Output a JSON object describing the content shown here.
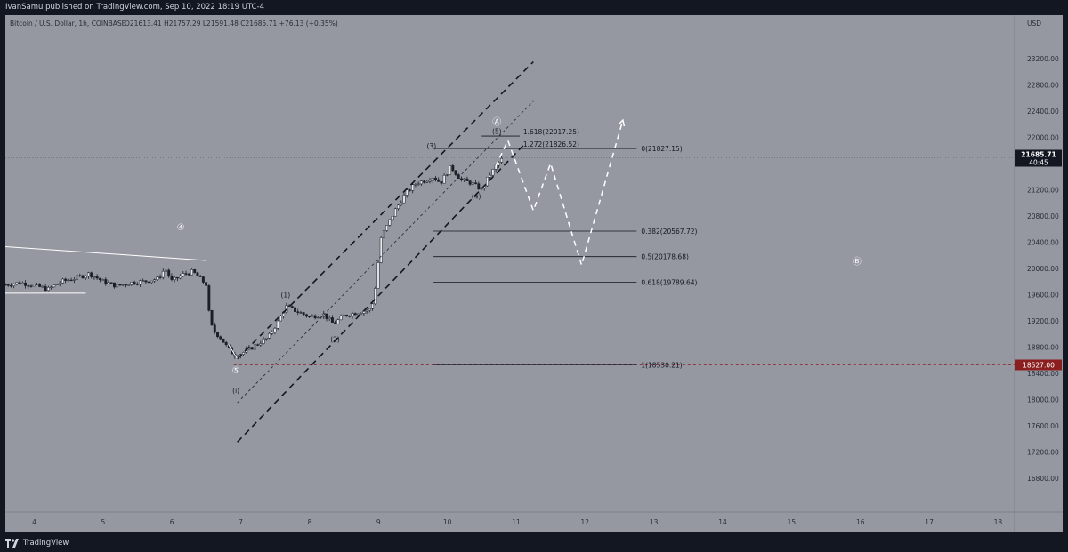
{
  "header": {
    "published_by": "IvanSamu published on TradingView.com, Sep 10, 2022 18:19 UTC-4"
  },
  "footer": {
    "brand": "TradingView"
  },
  "colors": {
    "background": "#9598a1",
    "frame": "#131722",
    "candle": "#1b1e26",
    "price_label_bg": "#131722",
    "low_label_bg": "#8b1f1f",
    "low_line": "#8b1f1f"
  },
  "chart_data": {
    "type": "candlestick",
    "instrument": "Bitcoin / U.S. Dollar, 1h, COINBASE",
    "ohlc_text": "O21613.41  H21757.29  L21591.48  C21685.71  +76.13 (+0.35%)",
    "currency": "USD",
    "ylim": [
      16500,
      23550
    ],
    "xlim": [
      3.58,
      18.24
    ],
    "y_ticks": [
      "23200.00",
      "22800.00",
      "22400.00",
      "22000.00",
      "21600.00",
      "21200.00",
      "20800.00",
      "20400.00",
      "20000.00",
      "19600.00",
      "19200.00",
      "18800.00",
      "18400.00",
      "18000.00",
      "17600.00",
      "17200.00",
      "16800.00"
    ],
    "x_ticks": [
      "4",
      "5",
      "6",
      "7",
      "8",
      "9",
      "10",
      "11",
      "12",
      "13",
      "14",
      "15",
      "16",
      "17",
      "18"
    ],
    "x_tick_values": [
      4,
      5,
      6,
      7,
      8,
      9,
      10,
      11,
      12,
      13,
      14,
      15,
      16,
      17,
      18
    ],
    "current_price": {
      "value": 21685.71,
      "label": "21685.71",
      "countdown": "40:45"
    },
    "low_marker": {
      "value": 18527,
      "label": "18527.00"
    },
    "fibonacci": [
      {
        "level": 0,
        "label": "0(21827.15)",
        "price": 21827.15,
        "x_start": 9.8,
        "x_end": 12.75
      },
      {
        "level": 0.382,
        "label": "0.382(20567.72)",
        "price": 20567.72,
        "x_start": 9.8,
        "x_end": 12.75
      },
      {
        "level": 0.5,
        "label": "0.5(20178.68)",
        "price": 20178.68,
        "x_start": 9.8,
        "x_end": 12.75
      },
      {
        "level": 0.618,
        "label": "0.618(19789.64)",
        "price": 19789.64,
        "x_start": 9.8,
        "x_end": 12.75
      },
      {
        "level": 1,
        "label": "1(18530.21)",
        "price": 18530.21,
        "x_start": 9.8,
        "x_end": 12.75
      }
    ],
    "extensions": [
      {
        "label": "1.618(22017.25)",
        "price": 22017.25,
        "x_start": 10.5,
        "x_end": 11.05
      },
      {
        "label": "1.272(21826.52)",
        "price": 21826.52,
        "x_start": 10.5,
        "x_end": 11.05
      }
    ],
    "wave_labels": [
      {
        "text": "④",
        "x": 6.13,
        "y": 20580
      },
      {
        "text": "⑤",
        "x": 6.93,
        "y": 18400
      },
      {
        "text": "(i)",
        "x": 6.93,
        "y": 18100
      },
      {
        "text": "(1)",
        "x": 7.65,
        "y": 19560
      },
      {
        "text": "(2)",
        "x": 8.37,
        "y": 18880
      },
      {
        "text": "(3)",
        "x": 9.77,
        "y": 21830
      },
      {
        "text": "(4)",
        "x": 10.42,
        "y": 21060
      },
      {
        "text": "(5)",
        "x": 10.72,
        "y": 22050
      },
      {
        "text": "Ⓐ",
        "x": 10.72,
        "y": 22190
      },
      {
        "text": "Ⓑ",
        "x": 15.95,
        "y": 20060
      }
    ],
    "projection_path": [
      {
        "x": 10.7,
        "y": 21550
      },
      {
        "x": 10.88,
        "y": 21950
      },
      {
        "x": 11.25,
        "y": 20880
      },
      {
        "x": 11.5,
        "y": 21600
      },
      {
        "x": 11.95,
        "y": 20050
      },
      {
        "x": 12.55,
        "y": 22260
      }
    ],
    "channel_outer_upper": [
      {
        "x": 6.95,
        "y": 18620
      },
      {
        "x": 11.25,
        "y": 23150
      }
    ],
    "channel_outer_lower": [
      {
        "x": 6.95,
        "y": 17350
      },
      {
        "x": 11.1,
        "y": 21870
      }
    ],
    "channel_inner": [
      {
        "x": 6.95,
        "y": 17950
      },
      {
        "x": 11.25,
        "y": 22550
      }
    ],
    "triangle_upper": [
      {
        "x": 3.58,
        "y": 20330
      },
      {
        "x": 6.5,
        "y": 20120
      }
    ],
    "triangle_lower": [
      {
        "x": 3.58,
        "y": 19620
      },
      {
        "x": 4.75,
        "y": 19620
      }
    ],
    "small_arrow": [
      {
        "x": 6.82,
        "y": 18840
      },
      {
        "x": 6.95,
        "y": 18620
      }
    ],
    "price_path": [
      {
        "x": 3.58,
        "y": 19750
      },
      {
        "x": 3.8,
        "y": 19780
      },
      {
        "x": 4.0,
        "y": 19740
      },
      {
        "x": 4.2,
        "y": 19680
      },
      {
        "x": 4.4,
        "y": 19800
      },
      {
        "x": 4.6,
        "y": 19850
      },
      {
        "x": 4.8,
        "y": 19920
      },
      {
        "x": 5.0,
        "y": 19800
      },
      {
        "x": 5.2,
        "y": 19730
      },
      {
        "x": 5.4,
        "y": 19780
      },
      {
        "x": 5.6,
        "y": 19800
      },
      {
        "x": 5.8,
        "y": 19840
      },
      {
        "x": 5.9,
        "y": 20000
      },
      {
        "x": 6.0,
        "y": 19800
      },
      {
        "x": 6.15,
        "y": 19900
      },
      {
        "x": 6.3,
        "y": 19950
      },
      {
        "x": 6.5,
        "y": 19750
      },
      {
        "x": 6.55,
        "y": 19200
      },
      {
        "x": 6.6,
        "y": 19050
      },
      {
        "x": 6.7,
        "y": 18950
      },
      {
        "x": 6.8,
        "y": 18800
      },
      {
        "x": 6.9,
        "y": 18680
      },
      {
        "x": 7.0,
        "y": 18700
      },
      {
        "x": 7.1,
        "y": 18750
      },
      {
        "x": 7.25,
        "y": 18850
      },
      {
        "x": 7.4,
        "y": 18950
      },
      {
        "x": 7.55,
        "y": 19200
      },
      {
        "x": 7.65,
        "y": 19420
      },
      {
        "x": 7.8,
        "y": 19350
      },
      {
        "x": 8.0,
        "y": 19260
      },
      {
        "x": 8.2,
        "y": 19300
      },
      {
        "x": 8.35,
        "y": 19150
      },
      {
        "x": 8.5,
        "y": 19280
      },
      {
        "x": 8.7,
        "y": 19330
      },
      {
        "x": 8.9,
        "y": 19380
      },
      {
        "x": 8.97,
        "y": 19800
      },
      {
        "x": 9.03,
        "y": 20450
      },
      {
        "x": 9.15,
        "y": 20700
      },
      {
        "x": 9.25,
        "y": 20900
      },
      {
        "x": 9.4,
        "y": 21150
      },
      {
        "x": 9.55,
        "y": 21300
      },
      {
        "x": 9.7,
        "y": 21350
      },
      {
        "x": 9.8,
        "y": 21400
      },
      {
        "x": 9.9,
        "y": 21300
      },
      {
        "x": 10.05,
        "y": 21550
      },
      {
        "x": 10.2,
        "y": 21350
      },
      {
        "x": 10.35,
        "y": 21300
      },
      {
        "x": 10.5,
        "y": 21200
      },
      {
        "x": 10.6,
        "y": 21400
      },
      {
        "x": 10.75,
        "y": 21620
      },
      {
        "x": 10.82,
        "y": 21690
      }
    ]
  }
}
